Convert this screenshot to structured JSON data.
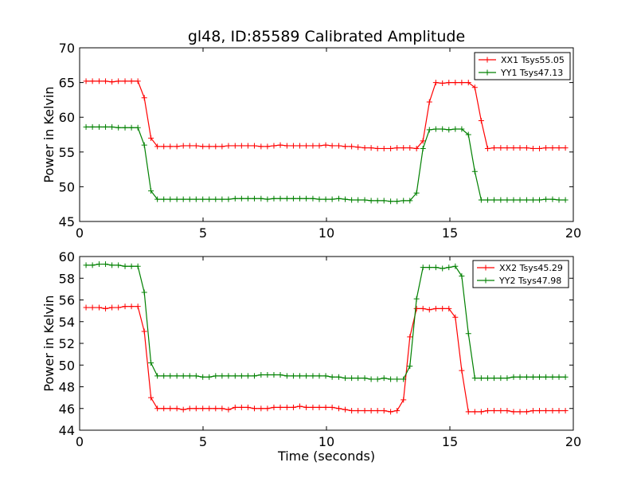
{
  "figure_title": "gl48, ID:85589 Calibrated Amplitude",
  "chart_data": [
    {
      "type": "line",
      "title": "gl48, ID:85589 Calibrated Amplitude",
      "xlabel": "",
      "ylabel": "Power in Kelvin",
      "xlim": [
        0,
        20
      ],
      "ylim": [
        45,
        70
      ],
      "xticks": [
        0,
        5,
        10,
        15,
        20
      ],
      "yticks": [
        45,
        50,
        55,
        60,
        65,
        70
      ],
      "grid": false,
      "legend": "top-right",
      "x": [
        0.26,
        0.52,
        0.79,
        1.05,
        1.31,
        1.57,
        1.84,
        2.1,
        2.36,
        2.62,
        2.89,
        3.15,
        3.41,
        3.67,
        3.94,
        4.2,
        4.46,
        4.72,
        4.99,
        5.25,
        5.51,
        5.77,
        6.03,
        6.3,
        6.56,
        6.82,
        7.08,
        7.35,
        7.61,
        7.87,
        8.13,
        8.4,
        8.66,
        8.92,
        9.18,
        9.45,
        9.71,
        9.97,
        10.23,
        10.5,
        10.76,
        11.02,
        11.28,
        11.55,
        11.81,
        12.07,
        12.33,
        12.6,
        12.86,
        13.12,
        13.38,
        13.65,
        13.91,
        14.17,
        14.43,
        14.7,
        14.96,
        15.22,
        15.48,
        15.75,
        16.01,
        16.27,
        16.53,
        16.79,
        17.06,
        17.32,
        17.58,
        17.84,
        18.11,
        18.37,
        18.63,
        18.89,
        19.16,
        19.42,
        19.68
      ],
      "series": [
        {
          "name": "XX1 Tsys55.05",
          "color": "#ff0000",
          "values": [
            65.2,
            65.2,
            65.2,
            65.2,
            65.1,
            65.2,
            65.2,
            65.2,
            65.2,
            62.8,
            57.0,
            55.8,
            55.8,
            55.8,
            55.8,
            55.9,
            55.9,
            55.9,
            55.8,
            55.8,
            55.8,
            55.8,
            55.9,
            55.9,
            55.9,
            55.9,
            55.9,
            55.8,
            55.8,
            55.9,
            56.0,
            55.9,
            55.9,
            55.9,
            55.9,
            55.9,
            55.9,
            56.0,
            55.9,
            55.9,
            55.8,
            55.8,
            55.7,
            55.6,
            55.6,
            55.5,
            55.5,
            55.5,
            55.6,
            55.6,
            55.6,
            55.5,
            56.6,
            62.2,
            65.0,
            64.9,
            65.0,
            65.0,
            65.0,
            65.0,
            64.3,
            59.5,
            55.5,
            55.6,
            55.6,
            55.6,
            55.6,
            55.6,
            55.6,
            55.5,
            55.5,
            55.6,
            55.6,
            55.6,
            55.6
          ]
        },
        {
          "name": "YY1 Tsys47.13",
          "color": "#008000",
          "values": [
            58.6,
            58.6,
            58.6,
            58.6,
            58.6,
            58.5,
            58.5,
            58.5,
            58.5,
            56.0,
            49.4,
            48.2,
            48.2,
            48.2,
            48.2,
            48.2,
            48.2,
            48.2,
            48.2,
            48.2,
            48.2,
            48.2,
            48.2,
            48.3,
            48.3,
            48.3,
            48.3,
            48.3,
            48.2,
            48.3,
            48.3,
            48.3,
            48.3,
            48.3,
            48.3,
            48.3,
            48.2,
            48.2,
            48.2,
            48.3,
            48.2,
            48.1,
            48.1,
            48.1,
            48.0,
            48.0,
            48.0,
            47.9,
            47.9,
            48.0,
            48.0,
            49.1,
            55.5,
            58.2,
            58.3,
            58.3,
            58.2,
            58.3,
            58.3,
            57.5,
            52.2,
            48.1,
            48.1,
            48.1,
            48.1,
            48.1,
            48.1,
            48.1,
            48.1,
            48.1,
            48.1,
            48.2,
            48.2,
            48.1,
            48.1
          ]
        }
      ]
    },
    {
      "type": "line",
      "title": "",
      "xlabel": "Time (seconds)",
      "ylabel": "Power in Kelvin",
      "xlim": [
        0,
        20
      ],
      "ylim": [
        44,
        60
      ],
      "xticks": [
        0,
        5,
        10,
        15,
        20
      ],
      "yticks": [
        44,
        46,
        48,
        50,
        52,
        54,
        56,
        58,
        60
      ],
      "grid": false,
      "legend": "top-right",
      "x": [
        0.26,
        0.52,
        0.79,
        1.05,
        1.31,
        1.57,
        1.84,
        2.1,
        2.36,
        2.62,
        2.89,
        3.15,
        3.41,
        3.67,
        3.94,
        4.2,
        4.46,
        4.72,
        4.99,
        5.25,
        5.51,
        5.77,
        6.03,
        6.3,
        6.56,
        6.82,
        7.08,
        7.35,
        7.61,
        7.87,
        8.13,
        8.4,
        8.66,
        8.92,
        9.18,
        9.45,
        9.71,
        9.97,
        10.23,
        10.5,
        10.76,
        11.02,
        11.28,
        11.55,
        11.81,
        12.07,
        12.33,
        12.6,
        12.86,
        13.12,
        13.38,
        13.65,
        13.91,
        14.17,
        14.43,
        14.7,
        14.96,
        15.22,
        15.48,
        15.75,
        16.01,
        16.27,
        16.53,
        16.79,
        17.06,
        17.32,
        17.58,
        17.84,
        18.11,
        18.37,
        18.63,
        18.89,
        19.16,
        19.42,
        19.68
      ],
      "series": [
        {
          "name": "XX2 Tsys45.29",
          "color": "#ff0000",
          "values": [
            55.3,
            55.3,
            55.3,
            55.2,
            55.3,
            55.3,
            55.4,
            55.4,
            55.4,
            53.1,
            47.0,
            46.0,
            46.0,
            46.0,
            46.0,
            45.9,
            46.0,
            46.0,
            46.0,
            46.0,
            46.0,
            46.0,
            45.9,
            46.1,
            46.1,
            46.1,
            46.0,
            46.0,
            46.0,
            46.1,
            46.1,
            46.1,
            46.1,
            46.2,
            46.1,
            46.1,
            46.1,
            46.1,
            46.1,
            46.0,
            45.9,
            45.8,
            45.8,
            45.8,
            45.8,
            45.8,
            45.8,
            45.7,
            45.8,
            46.8,
            52.6,
            55.2,
            55.2,
            55.1,
            55.2,
            55.2,
            55.2,
            54.4,
            49.5,
            45.7,
            45.7,
            45.7,
            45.8,
            45.8,
            45.8,
            45.8,
            45.7,
            45.7,
            45.7,
            45.8,
            45.8,
            45.8,
            45.8,
            45.8,
            45.8
          ]
        },
        {
          "name": "YY2 Tsys47.98",
          "color": "#008000",
          "values": [
            59.2,
            59.2,
            59.3,
            59.3,
            59.2,
            59.2,
            59.1,
            59.1,
            59.1,
            56.7,
            50.2,
            49.0,
            49.0,
            49.0,
            49.0,
            49.0,
            49.0,
            49.0,
            48.9,
            48.9,
            49.0,
            49.0,
            49.0,
            49.0,
            49.0,
            49.0,
            49.0,
            49.1,
            49.1,
            49.1,
            49.1,
            49.0,
            49.0,
            49.0,
            49.0,
            49.0,
            49.0,
            49.0,
            48.9,
            48.9,
            48.8,
            48.8,
            48.8,
            48.8,
            48.7,
            48.7,
            48.8,
            48.7,
            48.7,
            48.7,
            49.9,
            56.1,
            59.0,
            59.0,
            59.0,
            58.9,
            59.0,
            59.1,
            58.2,
            52.9,
            48.8,
            48.8,
            48.8,
            48.8,
            48.8,
            48.8,
            48.9,
            48.9,
            48.9,
            48.9,
            48.9,
            48.9,
            48.9,
            48.9,
            48.9
          ]
        }
      ]
    }
  ]
}
